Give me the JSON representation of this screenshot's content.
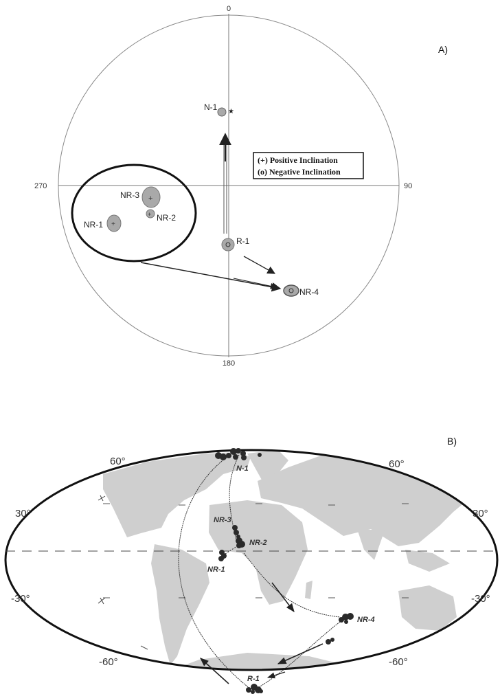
{
  "panel_a": {
    "label": "A)",
    "directions": {
      "north": "0",
      "east": "90",
      "south": "180",
      "west": "270"
    },
    "legend": {
      "positive": "(+) Positive Inclination",
      "negative": "(o) Negative Inclination"
    },
    "sites": {
      "n1": "N-1",
      "nr3": "NR-3",
      "nr2": "NR-2",
      "nr1": "NR-1",
      "r1": "R-1",
      "nr4": "NR-4"
    }
  },
  "panel_b": {
    "label": "B)",
    "lat_labels": {
      "n60_left": "60°",
      "n60_right": "60°",
      "n30_left": "30°",
      "n30_right": "30°",
      "s30_left": "-30°",
      "s30_right": "-30°",
      "s60_left": "-60°",
      "s60_right": "-60°"
    },
    "sites": {
      "n1": "N-1",
      "nr3": "NR-3",
      "nr2": "NR-2",
      "nr1": "NR-1",
      "nr4": "NR-4",
      "r1": "R-1"
    }
  },
  "colors": {
    "confidence_fill": "#a9a9a9",
    "land": "#cfcfcf",
    "vgp": "#2a2a2a",
    "line": "#333333"
  }
}
